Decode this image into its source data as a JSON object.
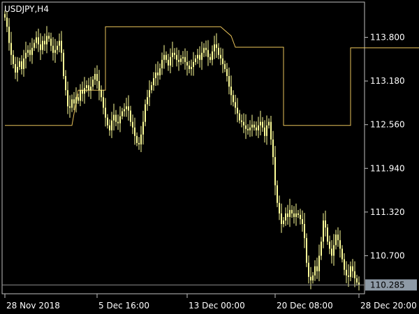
{
  "chart_data": {
    "type": "candlestick",
    "title": "USDJPY,H4",
    "symbol": "USDJPY",
    "timeframe": "H4",
    "colors": {
      "background": "#000000",
      "frame": "#c0c0c0",
      "candle": "#ffff99",
      "indicator": "#e8c25a",
      "bid_line": "#8c8c8c",
      "price_box": "#8e9aa6",
      "text": "#ffffff"
    },
    "y_axis": {
      "ylim": [
        110.16,
        114.3
      ],
      "tick_labels": [
        "113.800",
        "113.180",
        "112.560",
        "111.940",
        "111.320",
        "110.700"
      ],
      "tick_values": [
        113.8,
        113.18,
        112.56,
        111.94,
        111.32,
        110.7
      ]
    },
    "x_axis": {
      "tick_labels": [
        "28 Nov 2018",
        "5 Dec 16:00",
        "13 Dec 00:00",
        "20 Dec 08:00",
        "28 Dec 20:00"
      ],
      "bar_count": 170,
      "tick_bar_index": [
        0,
        44,
        87,
        129,
        169
      ]
    },
    "last_price": {
      "value": 110.285,
      "label": "110.285"
    },
    "series": [
      {
        "kind": "close_line",
        "close": [
          114.08,
          113.95,
          113.72,
          113.55,
          113.42,
          113.3,
          113.38,
          113.46,
          113.35,
          113.5,
          113.58,
          113.62,
          113.55,
          113.65,
          113.72,
          113.8,
          113.7,
          113.62,
          113.75,
          113.7,
          113.82,
          113.78,
          113.68,
          113.58,
          113.62,
          113.68,
          113.75,
          113.58,
          113.25,
          113.05,
          112.82,
          112.8,
          112.92,
          112.86,
          112.95,
          112.9,
          113.05,
          113.0,
          113.08,
          113.12,
          113.05,
          113.1,
          113.2,
          113.28,
          113.18,
          113.05,
          112.95,
          112.8,
          112.66,
          112.55,
          112.48,
          112.62,
          112.7,
          112.6,
          112.58,
          112.68,
          112.75,
          112.78,
          112.82,
          112.76,
          112.6,
          112.52,
          112.4,
          112.3,
          112.28,
          112.42,
          112.6,
          112.85,
          112.95,
          113.05,
          113.12,
          113.22,
          113.3,
          113.26,
          113.36,
          113.48,
          113.55,
          113.48,
          113.4,
          113.52,
          113.58,
          113.55,
          113.48,
          113.45,
          113.5,
          113.52,
          113.45,
          113.4,
          113.35,
          113.38,
          113.45,
          113.5,
          113.55,
          113.48,
          113.58,
          113.65,
          113.62,
          113.52,
          113.48,
          113.6,
          113.7,
          113.65,
          113.55,
          113.5,
          113.42,
          113.35,
          113.25,
          113.1,
          112.98,
          112.88,
          112.8,
          112.72,
          112.62,
          112.6,
          112.55,
          112.5,
          112.48,
          112.52,
          112.56,
          112.52,
          112.48,
          112.55,
          112.6,
          112.52,
          112.4,
          112.55,
          112.6,
          112.35,
          112.1,
          111.7,
          111.45,
          111.3,
          111.15,
          111.2,
          111.3,
          111.25,
          111.35,
          111.3,
          111.25,
          111.3,
          111.28,
          111.22,
          111.15,
          110.95,
          110.6,
          110.4,
          110.35,
          110.42,
          110.55,
          110.48,
          110.7,
          110.9,
          111.2,
          111.1,
          110.9,
          110.8,
          110.7,
          110.85,
          111.0,
          110.92,
          110.8,
          110.65,
          110.5,
          110.42,
          110.4,
          110.55,
          110.48,
          110.38,
          110.32,
          110.285
        ]
      },
      {
        "kind": "step_indicator",
        "name": "",
        "points": [
          [
            0,
            112.55
          ],
          [
            32,
            112.55
          ],
          [
            35,
            113.05
          ],
          [
            48,
            113.05
          ],
          [
            48,
            113.95
          ],
          [
            103,
            113.95
          ],
          [
            108,
            113.82
          ],
          [
            110,
            113.66
          ],
          [
            133,
            113.66
          ],
          [
            133,
            112.55
          ],
          [
            165,
            112.55
          ],
          [
            165,
            113.65
          ],
          [
            200,
            113.65
          ],
          [
            200,
            113.4
          ],
          [
            205,
            113.3
          ]
        ]
      }
    ],
    "grid": false,
    "legend": "none"
  }
}
